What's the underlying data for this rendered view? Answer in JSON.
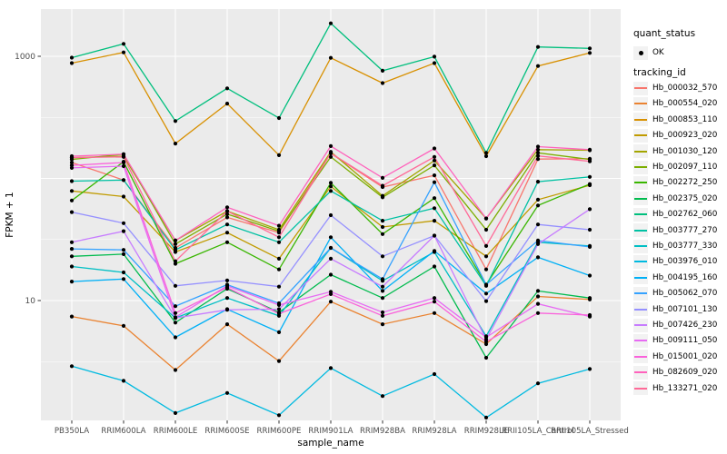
{
  "chart_data": {
    "type": "line",
    "title": "",
    "xlabel": "sample_name",
    "ylabel": "FPKM + 1",
    "y_scale": "log10",
    "y_tick_labels": [
      "1000",
      "10"
    ],
    "y_tick_values": [
      1000,
      10
    ],
    "ylim_log": [
      1.04,
      2438
    ],
    "grid": "major-and-minor-white-on-grey",
    "legend_position": "right",
    "x_categories": [
      "PB350LA",
      "RRIM600LA",
      "RRIM600LE",
      "RRIM600SE",
      "RRIM600PE",
      "RRIM901LA",
      "RRIM928BA",
      "RRIM928LA",
      "RRIM928LE",
      "RRII105LA_Control",
      "RRII105LA_Stressed"
    ],
    "legend": {
      "quant_status_title": "quant_status",
      "quant_status_items": [
        {
          "label": "OK",
          "symbol": "black-point"
        }
      ],
      "tracking_title": "tracking_id"
    },
    "series": [
      {
        "name": "Hb_000032_570",
        "color": "#F8766D",
        "values": [
          135,
          97,
          27,
          48,
          36,
          160,
          85,
          106,
          18,
          144,
          145
        ]
      },
      {
        "name": "Hb_000554_020",
        "color": "#EA8331",
        "values": [
          7.4,
          6.2,
          2.7,
          6.4,
          3.2,
          9.8,
          6.4,
          7.9,
          4.4,
          10.8,
          10.2
        ]
      },
      {
        "name": "Hb_000853_110",
        "color": "#D89000",
        "values": [
          880,
          1076,
          193,
          410,
          155,
          972,
          604,
          880,
          152,
          832,
          1066
        ]
      },
      {
        "name": "Hb_000923_020",
        "color": "#C09B00",
        "values": [
          79,
          71,
          25,
          36,
          22,
          86,
          40,
          45,
          23,
          67,
          88
        ]
      },
      {
        "name": "Hb_001030_120",
        "color": "#A3A500",
        "values": [
          148,
          152,
          31,
          54,
          38,
          165,
          72,
          140,
          47,
          172,
          170
        ]
      },
      {
        "name": "Hb_002097_110",
        "color": "#7CAE00",
        "values": [
          143,
          158,
          29,
          51,
          37,
          150,
          70,
          128,
          38,
          162,
          143
        ]
      },
      {
        "name": "Hb_002272_250",
        "color": "#39B600",
        "values": [
          66,
          137,
          20,
          30,
          18,
          92,
          35,
          69,
          13.5,
          60,
          90
        ]
      },
      {
        "name": "Hb_002375_020",
        "color": "#00BB4E",
        "values": [
          23,
          24,
          6.6,
          12.5,
          8,
          16.3,
          10.5,
          19,
          3.4,
          12,
          10.5
        ]
      },
      {
        "name": "Hb_002762_060",
        "color": "#00BF7D",
        "values": [
          975,
          1265,
          295,
          546,
          312,
          1862,
          762,
          993,
          162,
          1193,
          1160
        ]
      },
      {
        "name": "Hb_003777_270",
        "color": "#00C1A3",
        "values": [
          95,
          97,
          26,
          42,
          30,
          79,
          45,
          57,
          13.2,
          94,
          103
        ]
      },
      {
        "name": "Hb_003777_330",
        "color": "#00BFC4",
        "values": [
          19,
          17,
          7.2,
          10.5,
          7.5,
          27,
          14.5,
          25,
          5.1,
          30,
          28
        ]
      },
      {
        "name": "Hb_003976_010",
        "color": "#00BAE0",
        "values": [
          2.9,
          2.2,
          1.2,
          1.75,
          1.15,
          2.8,
          1.65,
          2.5,
          1.1,
          2.1,
          2.75
        ]
      },
      {
        "name": "Hb_004195_160",
        "color": "#00B0F6",
        "values": [
          14.3,
          15,
          5.0,
          8.5,
          5.5,
          33,
          12,
          25.5,
          11.4,
          22.6,
          16
        ]
      },
      {
        "name": "Hb_005062_070",
        "color": "#35A2FF",
        "values": [
          26.5,
          26,
          9,
          13.5,
          9.5,
          27,
          15,
          93,
          13.5,
          31,
          27.5
        ]
      },
      {
        "name": "Hb_007101_130",
        "color": "#9590FF",
        "values": [
          53,
          43,
          13.2,
          14.6,
          13,
          50,
          23,
          34,
          9.9,
          42,
          38
        ]
      },
      {
        "name": "Hb_007426_230",
        "color": "#C77CFF",
        "values": [
          30,
          37,
          7.2,
          8.4,
          8.5,
          22,
          13,
          34,
          4.8,
          29,
          56
        ]
      },
      {
        "name": "Hb_009111_050",
        "color": "#E76BF3",
        "values": [
          122,
          126,
          7.3,
          13.2,
          9.2,
          11.8,
          8.0,
          10.5,
          5.0,
          9.4,
          7.4
        ]
      },
      {
        "name": "Hb_015001_020",
        "color": "#FA62DB",
        "values": [
          128,
          135,
          7.9,
          12.8,
          7.8,
          11.3,
          7.5,
          9.8,
          4.6,
          7.9,
          7.6
        ]
      },
      {
        "name": "Hb_082609_020",
        "color": "#FF62BC",
        "values": [
          152,
          158,
          31,
          58,
          41,
          184,
          101,
          176,
          47,
          182,
          172
        ]
      },
      {
        "name": "Hb_133271_020",
        "color": "#FF6A98",
        "values": [
          148,
          150,
          21,
          54,
          33,
          161,
          87,
          150,
          28,
          153,
          138
        ]
      }
    ],
    "panel_color": "#EBEBEB",
    "gridline_color": "#FFFFFF",
    "point_color": "#000000",
    "legend_key_color": "#F2F2F2"
  }
}
